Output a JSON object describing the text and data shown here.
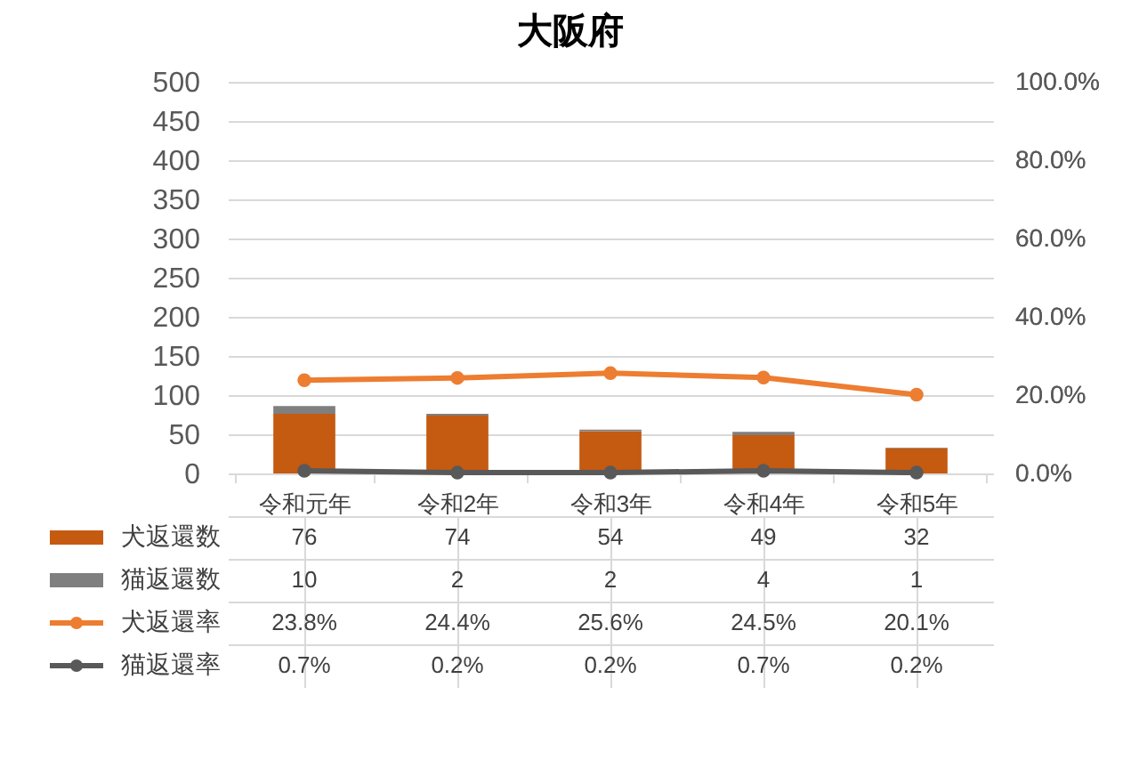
{
  "chart_data": {
    "type": "bar",
    "title": "大阪府",
    "stacked": true,
    "grid": "y",
    "legend": "bottom",
    "marker": "circle",
    "categories": [
      "令和元年",
      "令和2年",
      "令和3年",
      "令和4年",
      "令和5年"
    ],
    "series": [
      {
        "name": "犬返還数",
        "color": "#c55a11",
        "values": [
          76,
          74,
          54,
          49,
          32
        ],
        "value_labels": [
          "76",
          "74",
          "54",
          "49",
          "32"
        ]
      },
      {
        "name": "猫返還数",
        "color": "#7f7f7f",
        "values": [
          10,
          2,
          2,
          4,
          1
        ],
        "value_labels": [
          "10",
          "2",
          "2",
          "4",
          "1"
        ]
      },
      {
        "name": "犬返還率",
        "type": "line",
        "axis": "y2",
        "color": "#ed7d31",
        "values": [
          23.8,
          24.4,
          25.6,
          24.5,
          20.1
        ],
        "value_labels": [
          "23.8%",
          "24.4%",
          "25.6%",
          "24.5%",
          "20.1%"
        ]
      },
      {
        "name": "猫返還率",
        "type": "line",
        "axis": "y2",
        "color": "#595959",
        "values": [
          0.7,
          0.2,
          0.2,
          0.7,
          0.2
        ],
        "value_labels": [
          "0.7%",
          "0.2%",
          "0.2%",
          "0.7%",
          "0.2%"
        ]
      }
    ],
    "ylim": [
      0,
      500
    ],
    "yticks": [
      0,
      50,
      100,
      150,
      200,
      250,
      300,
      350,
      400,
      450,
      500
    ],
    "y2lim": [
      0,
      100
    ],
    "y2ticks": [
      {
        "value": 0,
        "label": "0.0%"
      },
      {
        "value": 20,
        "label": "20.0%"
      },
      {
        "value": 40,
        "label": "40.0%"
      },
      {
        "value": 60,
        "label": "60.0%"
      },
      {
        "value": 80,
        "label": "80.0%"
      },
      {
        "value": 100,
        "label": "100.0%"
      }
    ]
  }
}
